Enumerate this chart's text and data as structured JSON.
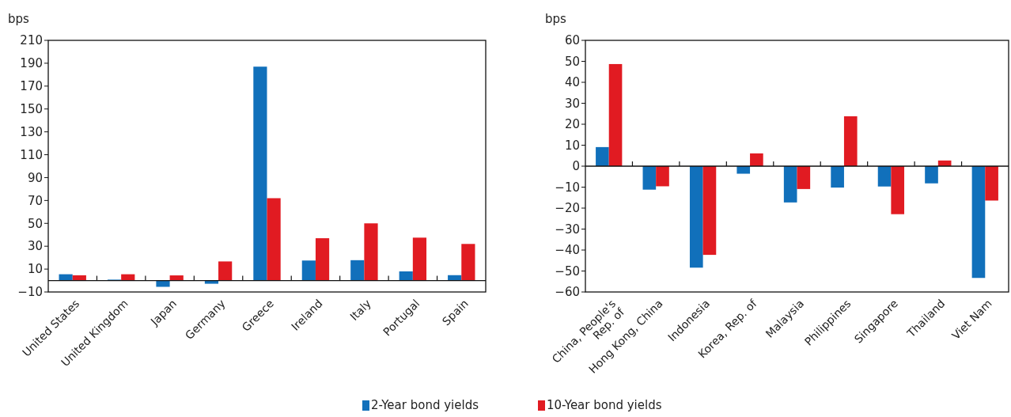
{
  "chart_data": [
    {
      "type": "bar",
      "ylabel": "bps",
      "categories": [
        "United States",
        "United Kingdom",
        "Japan",
        "Germany",
        "Greece",
        "Ireland",
        "Italy",
        "Portugal",
        "Spain"
      ],
      "series": [
        {
          "name": "2-Year bond yields",
          "color": "#1170bb",
          "values": [
            5.5,
            0.8,
            -5.5,
            -2.8,
            187,
            17.5,
            17.8,
            8,
            4.7
          ]
        },
        {
          "name": "10-Year bond yields",
          "color": "#e11b22",
          "values": [
            4.6,
            5.5,
            4.5,
            16.7,
            72,
            37,
            50,
            37.5,
            32
          ]
        }
      ],
      "ylim": [
        -10,
        210
      ],
      "yticks": [
        -10,
        10,
        30,
        50,
        70,
        90,
        110,
        130,
        150,
        170,
        190,
        210
      ],
      "legend": "bottom"
    },
    {
      "type": "bar",
      "ylabel": "bps",
      "categories": [
        "China, People's Rep. of",
        "Hong Kong, China",
        "Indonesia",
        "Korea, Rep. of",
        "Malaysia",
        "Philippines",
        "Singapore",
        "Thailand",
        "Viet Nam"
      ],
      "series": [
        {
          "color": "#1170bb",
          "values": [
            9.1,
            -11.2,
            -48.4,
            -3.6,
            -17.3,
            -10.2,
            -9.7,
            -8.2,
            -53.3
          ]
        },
        {
          "color": "#e11b22",
          "values": [
            48.7,
            -9.6,
            -42.3,
            6.1,
            -10.9,
            23.8,
            -22.9,
            2.7,
            -16.4
          ]
        }
      ],
      "ylim": [
        -60,
        60
      ],
      "yticks": [
        -60,
        -50,
        -40,
        -30,
        -20,
        -10,
        0,
        10,
        20,
        30,
        40,
        50,
        60
      ]
    }
  ]
}
